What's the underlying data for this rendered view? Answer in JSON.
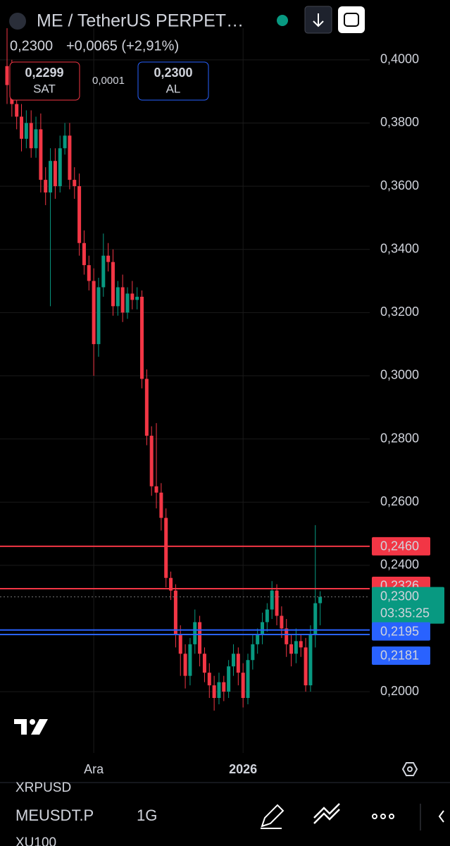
{
  "header": {
    "title": "ME / TetherUS PERPET…",
    "price": "0,2300",
    "change": "+0,0065 (+2,91%)",
    "sell": {
      "price": "0,2299",
      "label": "SAT"
    },
    "spread": "0,0001",
    "buy": {
      "price": "0,2300",
      "label": "AL"
    }
  },
  "chart_data": {
    "type": "candlestick",
    "categories": [
      null,
      null,
      null,
      null,
      null,
      null,
      null,
      null,
      null,
      null,
      null,
      null,
      null,
      null,
      null,
      null,
      null,
      null,
      "Ara",
      null,
      null,
      null,
      null,
      null,
      null,
      null,
      null,
      null,
      null,
      null,
      null,
      null,
      null,
      null,
      null,
      null,
      null,
      null,
      null,
      null,
      null,
      null,
      null,
      null,
      null,
      null,
      null,
      null,
      null,
      "2026",
      null,
      null,
      null,
      null,
      null,
      null,
      null,
      null,
      null,
      null,
      null,
      null,
      null,
      null,
      null,
      null
    ],
    "open": [
      0.398,
      0.392,
      0.386,
      0.382,
      0.375,
      0.38,
      0.372,
      0.378,
      0.362,
      0.358,
      0.368,
      0.36,
      0.372,
      0.376,
      0.362,
      0.36,
      0.342,
      0.335,
      0.33,
      0.31,
      0.328,
      0.338,
      0.336,
      0.322,
      0.328,
      0.32,
      0.326,
      0.324,
      0.325,
      0.299,
      0.281,
      0.265,
      0.263,
      0.255,
      0.236,
      0.232,
      0.218,
      0.212,
      0.205,
      0.215,
      0.222,
      0.212,
      0.206,
      0.202,
      0.198,
      0.203,
      0.2,
      0.208,
      0.212,
      0.206,
      0.198,
      0.21,
      0.215,
      0.218,
      0.222,
      0.226,
      0.232,
      0.224,
      0.22,
      0.215,
      0.212,
      0.216,
      0.214,
      0.202,
      0.218,
      0.228
    ],
    "high": [
      0.41,
      0.4,
      0.392,
      0.386,
      0.384,
      0.384,
      0.382,
      0.383,
      0.366,
      0.372,
      0.372,
      0.376,
      0.38,
      0.38,
      0.366,
      0.364,
      0.346,
      0.338,
      0.334,
      0.331,
      0.345,
      0.342,
      0.34,
      0.33,
      0.332,
      0.328,
      0.33,
      0.328,
      0.327,
      0.302,
      0.284,
      0.285,
      0.266,
      0.258,
      0.238,
      0.234,
      0.221,
      0.215,
      0.217,
      0.226,
      0.224,
      0.214,
      0.209,
      0.205,
      0.206,
      0.205,
      0.21,
      0.215,
      0.214,
      0.209,
      0.212,
      0.218,
      0.22,
      0.225,
      0.228,
      0.235,
      0.234,
      0.227,
      0.223,
      0.218,
      0.22,
      0.218,
      0.217,
      0.221,
      0.2527,
      0.2318
    ],
    "low": [
      0.386,
      0.382,
      0.378,
      0.371,
      0.372,
      0.369,
      0.369,
      0.358,
      0.354,
      0.322,
      0.356,
      0.358,
      0.37,
      0.359,
      0.356,
      0.338,
      0.332,
      0.327,
      0.3,
      0.306,
      0.325,
      0.333,
      0.319,
      0.319,
      0.317,
      0.318,
      0.321,
      0.321,
      0.296,
      0.278,
      0.262,
      0.258,
      0.251,
      0.233,
      0.229,
      0.214,
      0.205,
      0.201,
      0.202,
      0.212,
      0.208,
      0.203,
      0.198,
      0.194,
      0.196,
      0.197,
      0.198,
      0.205,
      0.202,
      0.195,
      0.196,
      0.207,
      0.212,
      0.215,
      0.219,
      0.223,
      0.221,
      0.217,
      0.211,
      0.208,
      0.209,
      0.211,
      0.2,
      0.2,
      0.214,
      0.221
    ],
    "close": [
      0.392,
      0.386,
      0.382,
      0.375,
      0.38,
      0.372,
      0.378,
      0.362,
      0.358,
      0.368,
      0.36,
      0.372,
      0.376,
      0.362,
      0.36,
      0.342,
      0.335,
      0.33,
      0.31,
      0.328,
      0.338,
      0.336,
      0.322,
      0.328,
      0.32,
      0.326,
      0.324,
      0.325,
      0.299,
      0.281,
      0.265,
      0.263,
      0.255,
      0.236,
      0.232,
      0.218,
      0.212,
      0.205,
      0.215,
      0.222,
      0.212,
      0.206,
      0.202,
      0.198,
      0.203,
      0.2,
      0.208,
      0.212,
      0.206,
      0.198,
      0.21,
      0.215,
      0.218,
      0.222,
      0.226,
      0.232,
      0.224,
      0.22,
      0.215,
      0.212,
      0.216,
      0.214,
      0.202,
      0.218,
      0.228,
      0.23
    ],
    "up_color": "#089981",
    "down_color": "#f23645",
    "ylim": [
      0.1806,
      0.41
    ],
    "yticks": [
      {
        "value": 0.4,
        "label": "0,4000"
      },
      {
        "value": 0.38,
        "label": "0,3800"
      },
      {
        "value": 0.36,
        "label": "0,3600"
      },
      {
        "value": 0.34,
        "label": "0,3400"
      },
      {
        "value": 0.32,
        "label": "0,3200"
      },
      {
        "value": 0.3,
        "label": "0,3000"
      },
      {
        "value": 0.28,
        "label": "0,2800"
      },
      {
        "value": 0.26,
        "label": "0,2600"
      },
      {
        "value": 0.24,
        "label": "0,2400"
      },
      {
        "value": 0.2,
        "label": "0,2000"
      }
    ],
    "grid": true,
    "levels": [
      {
        "value": 0.246,
        "label": "0,2460",
        "color": "#f23645"
      },
      {
        "value": 0.2326,
        "label": "0,2326",
        "color": "#f23645"
      },
      {
        "value": 0.2195,
        "label": "0,2195",
        "color": "#2962ff"
      },
      {
        "value": 0.2181,
        "label": "0,2181",
        "color": "#2962ff"
      }
    ],
    "current_price": {
      "value": 0.23,
      "label": "0,2300",
      "countdown": "03:35:25",
      "color": "#089981"
    }
  },
  "bottom": {
    "prev_symbol": "XRPUSD",
    "symbol": "MEUSDT.P",
    "interval": "1G",
    "next_symbol": "XU100"
  }
}
